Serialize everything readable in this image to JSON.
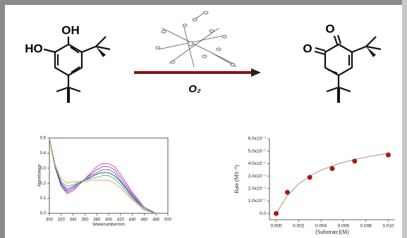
{
  "scheme": {
    "reactant_labels": [
      "HO",
      "OH"
    ],
    "product_labels": [
      "O",
      "O"
    ],
    "reagent": "O₂"
  },
  "chart_data": [
    {
      "type": "line",
      "xlabel": "Wavenumber/nm",
      "ylabel": "Absorbance",
      "x": [
        300,
        305,
        310,
        320,
        330,
        340,
        350,
        360,
        370,
        380,
        390,
        400,
        410,
        420,
        440,
        460,
        480
      ],
      "xlim": [
        300,
        500
      ],
      "xticks": [
        300,
        320,
        340,
        360,
        380,
        400,
        420,
        440,
        460,
        480,
        500
      ],
      "ylim": [
        0,
        0.5
      ],
      "yticks": [
        {
          "value": 0,
          "label": "0.0"
        },
        0.1,
        0.2,
        0.3,
        0.4,
        0.5
      ],
      "series": [
        {
          "color": "#e040a0",
          "values": [
            0.5,
            0.4,
            0.3,
            0.18,
            0.13,
            0.15,
            0.19,
            0.23,
            0.27,
            0.31,
            0.33,
            0.33,
            0.31,
            0.26,
            0.14,
            0.04,
            0.0
          ]
        },
        {
          "color": "#9040c0",
          "values": [
            0.5,
            0.4,
            0.3,
            0.18,
            0.14,
            0.16,
            0.19,
            0.23,
            0.26,
            0.29,
            0.31,
            0.31,
            0.29,
            0.24,
            0.13,
            0.04,
            0.0
          ]
        },
        {
          "color": "#4060d0",
          "values": [
            0.5,
            0.4,
            0.3,
            0.19,
            0.15,
            0.17,
            0.2,
            0.22,
            0.25,
            0.27,
            0.29,
            0.29,
            0.27,
            0.22,
            0.12,
            0.03,
            0.0
          ]
        },
        {
          "color": "#404040",
          "values": [
            0.5,
            0.4,
            0.31,
            0.2,
            0.16,
            0.18,
            0.2,
            0.22,
            0.24,
            0.26,
            0.27,
            0.27,
            0.25,
            0.21,
            0.11,
            0.03,
            0.0
          ]
        },
        {
          "color": "#40b0c0",
          "values": [
            0.5,
            0.41,
            0.31,
            0.21,
            0.18,
            0.19,
            0.21,
            0.22,
            0.23,
            0.24,
            0.25,
            0.25,
            0.23,
            0.19,
            0.1,
            0.03,
            0.0
          ]
        },
        {
          "color": "#e0a040",
          "values": [
            0.5,
            0.41,
            0.32,
            0.23,
            0.2,
            0.21,
            0.21,
            0.21,
            0.22,
            0.22,
            0.22,
            0.22,
            0.2,
            0.17,
            0.09,
            0.02,
            0.0
          ]
        }
      ]
    },
    {
      "type": "scatter",
      "xlabel": "[Substrate](M)",
      "ylabel": "Rate (MS⁻¹)",
      "xlim": [
        -0.0006,
        0.0106
      ],
      "xticks": [
        {
          "value": 0,
          "label": "0.000"
        },
        {
          "value": 0.002,
          "label": "0.002"
        },
        {
          "value": 0.004,
          "label": "0.004"
        },
        {
          "value": 0.006,
          "label": "0.006"
        },
        {
          "value": 0.008,
          "label": "0.008"
        },
        {
          "value": 0.01,
          "label": "0.010"
        }
      ],
      "ylim": [
        -5e-08,
        6e-07
      ],
      "yticks": [
        {
          "value": 0,
          "label": "0.0"
        },
        {
          "value": 1e-07,
          "label": "1.0x10⁻⁷"
        },
        {
          "value": 2e-07,
          "label": "2.0x10⁻⁷"
        },
        {
          "value": 3e-07,
          "label": "3.0x10⁻⁷"
        },
        {
          "value": 4e-07,
          "label": "4.0x10⁻⁷"
        },
        {
          "value": 5e-07,
          "label": "5.0x10⁻⁷"
        },
        {
          "value": 6e-07,
          "label": "6.0x10⁻⁷"
        }
      ],
      "series": [
        {
          "color": "#b01818",
          "x": [
            0,
            0.001,
            0.003,
            0.005,
            0.007,
            0.01
          ],
          "values": [
            0,
            1.7e-07,
            2.9e-07,
            3.6e-07,
            4.2e-07,
            4.7e-07
          ]
        },
        {
          "type": "line",
          "color": "#9a8a6a",
          "x": [
            0,
            0.001,
            0.002,
            0.003,
            0.004,
            0.005,
            0.006,
            0.007,
            0.008,
            0.009,
            0.01
          ],
          "values": [
            0,
            1.44e-07,
            2.36e-07,
            3e-07,
            3.47e-07,
            3.82e-07,
            4.1e-07,
            4.33e-07,
            4.52e-07,
            4.68e-07,
            4.81e-07
          ]
        }
      ]
    }
  ]
}
